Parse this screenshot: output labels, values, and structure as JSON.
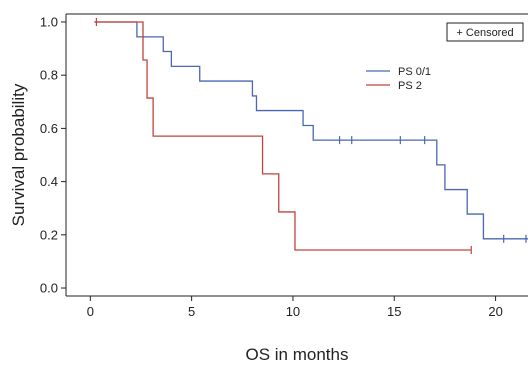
{
  "chart_data": {
    "type": "line",
    "title": "",
    "xlabel": "OS in months",
    "ylabel": "Survival probability",
    "xlim": [
      -1.2,
      21.6
    ],
    "ylim": [
      -0.03,
      1.03
    ],
    "xticks": [
      0,
      5,
      10,
      15,
      20
    ],
    "yticks": [
      0.0,
      0.2,
      0.4,
      0.6,
      0.8,
      1.0
    ],
    "xtick_labels": [
      "0",
      "5",
      "10",
      "15",
      "20"
    ],
    "ytick_labels": [
      "0.0",
      "0.2",
      "0.4",
      "0.6",
      "0.8",
      "1.0"
    ],
    "grid": false,
    "legend_position": "top-right",
    "censor_box_label": "+ Censored",
    "series": [
      {
        "name": "PS 0/1",
        "color": "#4a67b0",
        "steps": [
          [
            0.2,
            1.0
          ],
          [
            2.3,
            0.944
          ],
          [
            3.6,
            0.889
          ],
          [
            4.0,
            0.833
          ],
          [
            5.4,
            0.778
          ],
          [
            8.0,
            0.722
          ],
          [
            8.2,
            0.667
          ],
          [
            10.5,
            0.611
          ],
          [
            11.0,
            0.556
          ],
          [
            17.1,
            0.463
          ],
          [
            17.5,
            0.37
          ],
          [
            18.6,
            0.278
          ],
          [
            19.4,
            0.185
          ],
          [
            21.6,
            0.185
          ]
        ],
        "censored": [
          [
            12.3,
            0.556
          ],
          [
            12.9,
            0.556
          ],
          [
            15.3,
            0.556
          ],
          [
            16.5,
            0.556
          ],
          [
            20.4,
            0.185
          ],
          [
            21.5,
            0.185
          ]
        ]
      },
      {
        "name": "PS 2",
        "color": "#c0443a",
        "steps": [
          [
            0.2,
            1.0
          ],
          [
            2.6,
            0.857
          ],
          [
            2.8,
            0.714
          ],
          [
            3.1,
            0.571
          ],
          [
            8.5,
            0.429
          ],
          [
            9.3,
            0.286
          ],
          [
            10.1,
            0.143
          ],
          [
            18.8,
            0.143
          ]
        ],
        "censored": [
          [
            0.3,
            1.0
          ],
          [
            18.8,
            0.143
          ]
        ]
      }
    ]
  }
}
